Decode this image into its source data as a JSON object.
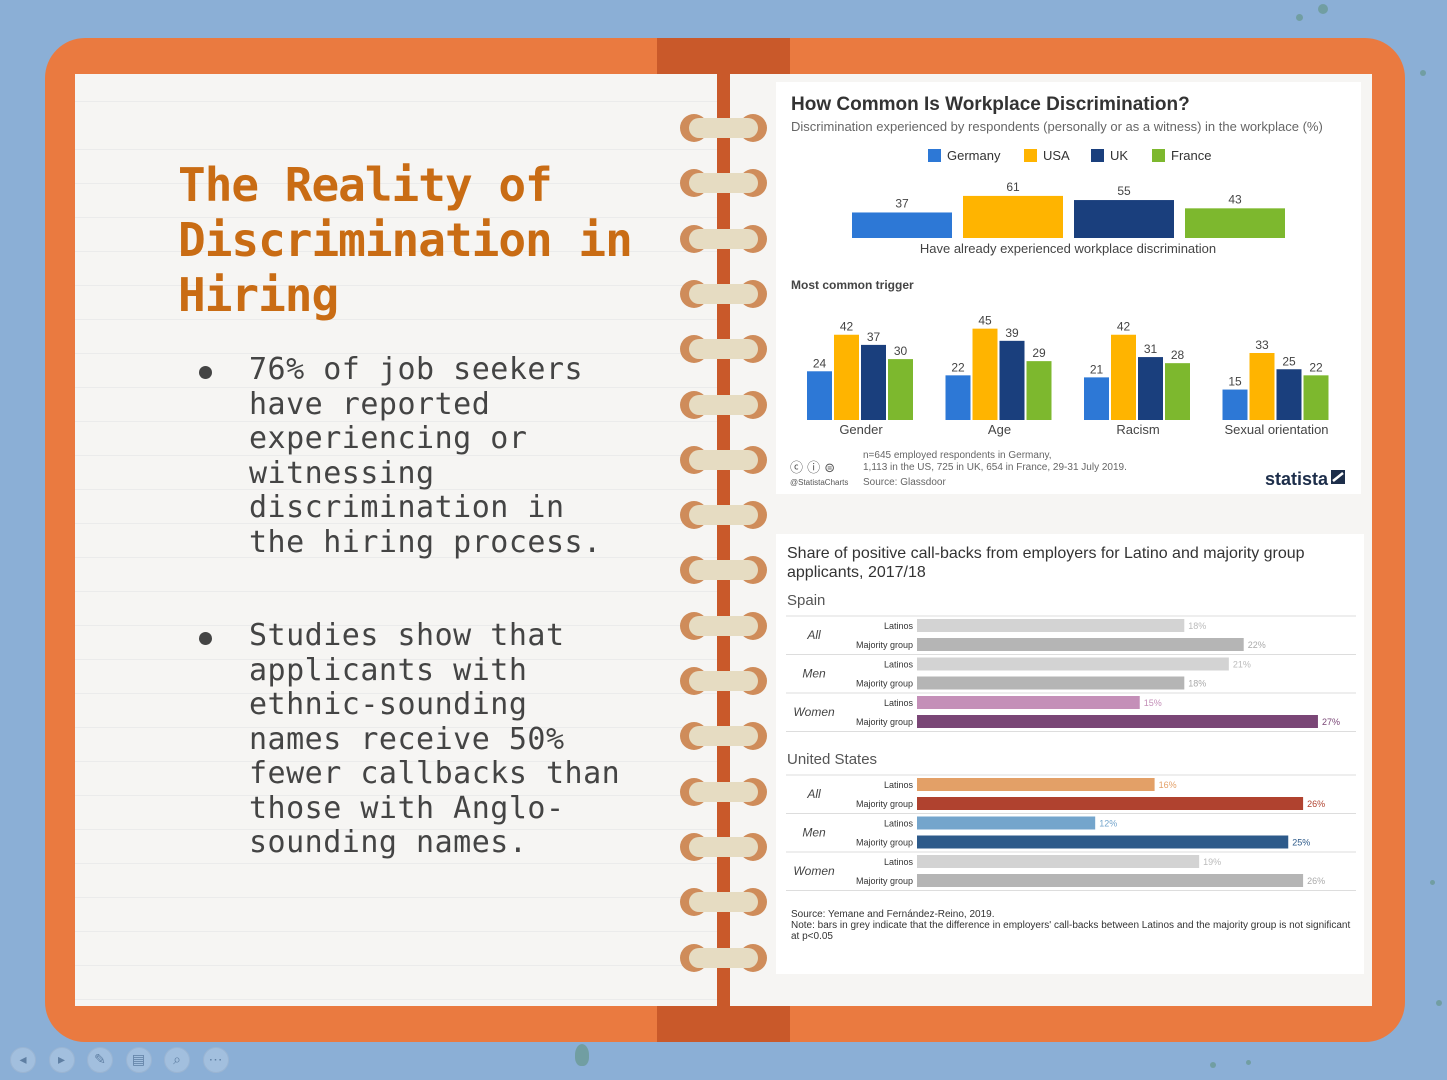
{
  "left_page": {
    "title": "The Reality of Discrimination in Hiring",
    "bullets": [
      "76% of job seekers\nhave reported\nexperiencing or\nwitnessing\ndiscrimination in\nthe hiring process.",
      "Studies show that\napplicants with\nethnic-sounding\nnames receive 50%\nfewer callbacks than\nthose with Anglo-\nsounding names."
    ]
  },
  "colors": {
    "book": "#ea7a40",
    "title": "#c96c14",
    "Germany": "#2d78d6",
    "USA": "#ffb400",
    "UK": "#1a3f7d",
    "France": "#7db82e"
  },
  "chart_data": [
    {
      "type": "bar",
      "title": "How Common Is Workplace Discrimination?",
      "subtitle": "Discrimination experienced by respondents (personally or as a witness) in the workplace (%)",
      "legend": [
        "Germany",
        "USA",
        "UK",
        "France"
      ],
      "overall": {
        "label": "Have already experienced workplace discrimination",
        "values": [
          37,
          61,
          55,
          43
        ]
      },
      "trigger_heading": "Most common trigger",
      "categories": [
        "Gender",
        "Age",
        "Racism",
        "Sexual orientation"
      ],
      "series": [
        {
          "name": "Germany",
          "values": [
            24,
            22,
            21,
            15
          ]
        },
        {
          "name": "USA",
          "values": [
            42,
            45,
            42,
            33
          ]
        },
        {
          "name": "UK",
          "values": [
            37,
            39,
            31,
            25
          ]
        },
        {
          "name": "France",
          "values": [
            30,
            29,
            28,
            22
          ]
        }
      ],
      "footnote": "n=645 employed respondents in Germany,\n1,113 in the US, 725 in UK, 654 in France, 29-31 July 2019.",
      "source": "Source: Glassdoor",
      "handle": "@StatistaCharts",
      "cc_icons": "ⓒ ⓘ ⊜",
      "brand": "statista"
    },
    {
      "type": "bar",
      "title": "Share of positive call-backs from employers for Latino and majority group applicants, 2017/18",
      "unit": "%",
      "max": 30,
      "sections": [
        {
          "country": "Spain",
          "groups": [
            {
              "group": "All",
              "rows": [
                {
                  "label": "Latinos",
                  "value": 18,
                  "color": "#d3d3d3",
                  "text_color": "#bbbbbb"
                },
                {
                  "label": "Majority group",
                  "value": 22,
                  "color": "#b5b5b5",
                  "text_color": "#aaaaaa"
                }
              ]
            },
            {
              "group": "Men",
              "rows": [
                {
                  "label": "Latinos",
                  "value": 21,
                  "color": "#d3d3d3",
                  "text_color": "#bbbbbb"
                },
                {
                  "label": "Majority group",
                  "value": 18,
                  "color": "#b5b5b5",
                  "text_color": "#aaaaaa"
                }
              ]
            },
            {
              "group": "Women",
              "rows": [
                {
                  "label": "Latinos",
                  "value": 15,
                  "color": "#c48fb8",
                  "text_color": "#c48fb8"
                },
                {
                  "label": "Majority group",
                  "value": 27,
                  "color": "#7a4676",
                  "text_color": "#7a4676"
                }
              ]
            }
          ]
        },
        {
          "country": "United States",
          "groups": [
            {
              "group": "All",
              "rows": [
                {
                  "label": "Latinos",
                  "value": 16,
                  "color": "#e3a067",
                  "text_color": "#e3a067"
                },
                {
                  "label": "Majority group",
                  "value": 26,
                  "color": "#b0422f",
                  "text_color": "#b0422f"
                }
              ]
            },
            {
              "group": "Men",
              "rows": [
                {
                  "label": "Latinos",
                  "value": 12,
                  "color": "#74a5cc",
                  "text_color": "#74a5cc"
                },
                {
                  "label": "Majority group",
                  "value": 25,
                  "color": "#2d5a8a",
                  "text_color": "#2d5a8a"
                }
              ]
            },
            {
              "group": "Women",
              "rows": [
                {
                  "label": "Latinos",
                  "value": 19,
                  "color": "#d3d3d3",
                  "text_color": "#bbbbbb"
                },
                {
                  "label": "Majority group",
                  "value": 26,
                  "color": "#b5b5b5",
                  "text_color": "#aaaaaa"
                }
              ]
            }
          ]
        }
      ],
      "source": "Source: Yemane and Fernández-Reino, 2019.",
      "note": "Note: bars in grey indicate that the difference in employers' call-backs between Latinos and the majority group is not significant at p<0.05"
    }
  ],
  "player_controls": [
    {
      "name": "prev-slide-button",
      "icon": "◂"
    },
    {
      "name": "next-slide-button",
      "icon": "▸"
    },
    {
      "name": "pen-tool-button",
      "icon": "✎"
    },
    {
      "name": "slides-overview-button",
      "icon": "▤"
    },
    {
      "name": "zoom-button",
      "icon": "⌕"
    },
    {
      "name": "more-options-button",
      "icon": "⋯"
    }
  ]
}
